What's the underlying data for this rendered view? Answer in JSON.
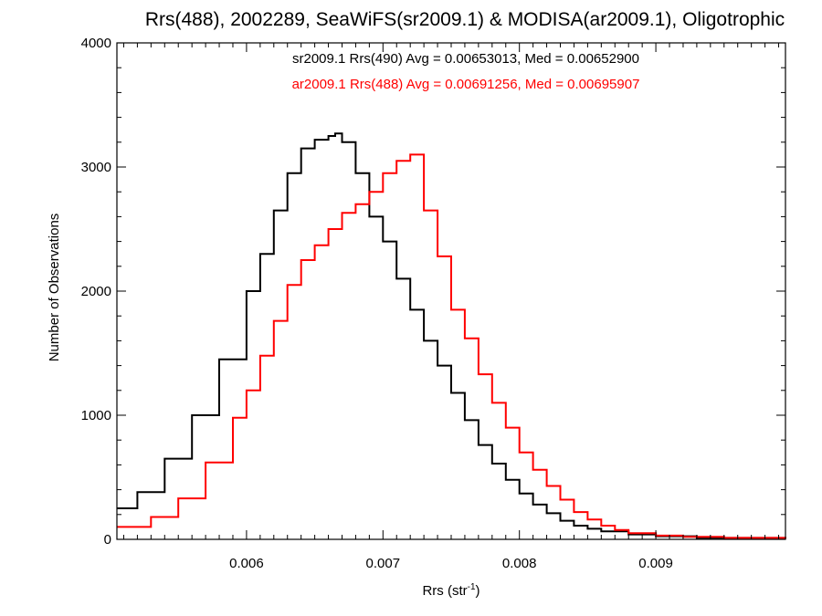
{
  "chart_data": {
    "type": "line",
    "title": "Rrs(488), 2002289, SeaWiFS(sr2009.1) & MODISA(ar2009.1), Oligotrophic",
    "xlabel": "Rrs (str",
    "xlabel_sup": "-1",
    "xlabel_suffix": ")",
    "ylabel": "Number of Observations",
    "xlim": [
      0.00505,
      0.00995
    ],
    "ylim": [
      0,
      4000
    ],
    "x_ticks": [
      0.006,
      0.007,
      0.008,
      0.009
    ],
    "x_tick_labels": [
      "0.006",
      "0.007",
      "0.008",
      "0.009"
    ],
    "y_ticks": [
      0,
      1000,
      2000,
      3000,
      4000
    ],
    "y_tick_labels": [
      "0",
      "1000",
      "2000",
      "3000",
      "4000"
    ],
    "grid": false,
    "legend_position": "top-center",
    "series": [
      {
        "name": "sr2009.1 Rrs(490) Avg = 0.00653013, Med = 0.00652900",
        "color": "#000000",
        "x": [
          0.00505,
          0.0052,
          0.0054,
          0.0056,
          0.0058,
          0.006,
          0.0061,
          0.0062,
          0.0063,
          0.0064,
          0.0065,
          0.0066,
          0.00665,
          0.0067,
          0.0068,
          0.0069,
          0.007,
          0.0071,
          0.0072,
          0.0073,
          0.0074,
          0.0075,
          0.0076,
          0.0077,
          0.0078,
          0.0079,
          0.008,
          0.0081,
          0.0082,
          0.0083,
          0.0084,
          0.0085,
          0.0086,
          0.0088,
          0.009,
          0.0093,
          0.00995
        ],
        "y": [
          250,
          380,
          650,
          1000,
          1450,
          2000,
          2300,
          2650,
          2950,
          3150,
          3220,
          3250,
          3270,
          3200,
          2950,
          2600,
          2400,
          2100,
          1850,
          1600,
          1400,
          1180,
          960,
          760,
          610,
          480,
          370,
          280,
          210,
          150,
          110,
          85,
          65,
          40,
          25,
          12,
          5
        ]
      },
      {
        "name": "ar2009.1 Rrs(488) Avg = 0.00691256, Med = 0.00695907",
        "color": "#ff0000",
        "x": [
          0.00505,
          0.0053,
          0.0055,
          0.0057,
          0.0059,
          0.006,
          0.0061,
          0.0062,
          0.0063,
          0.0064,
          0.0065,
          0.0066,
          0.0067,
          0.0068,
          0.0069,
          0.007,
          0.0071,
          0.0072,
          0.0073,
          0.0074,
          0.0075,
          0.0076,
          0.0077,
          0.0078,
          0.0079,
          0.008,
          0.0081,
          0.0082,
          0.0083,
          0.0084,
          0.0085,
          0.0086,
          0.0087,
          0.0088,
          0.009,
          0.0092,
          0.0095,
          0.00995
        ],
        "y": [
          100,
          180,
          330,
          620,
          980,
          1200,
          1480,
          1760,
          2050,
          2250,
          2370,
          2500,
          2630,
          2700,
          2800,
          2950,
          3050,
          3100,
          2650,
          2280,
          1850,
          1620,
          1330,
          1100,
          900,
          700,
          560,
          430,
          320,
          220,
          160,
          110,
          75,
          50,
          30,
          20,
          12,
          5
        ]
      }
    ]
  }
}
